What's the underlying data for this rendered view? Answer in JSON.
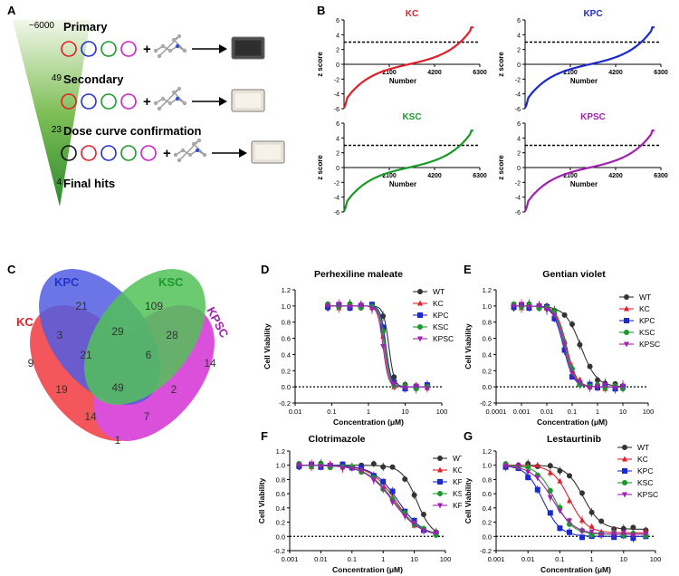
{
  "panels": {
    "a": "A",
    "b": "B",
    "c": "C",
    "d": "D",
    "e": "E",
    "f": "F",
    "g": "G"
  },
  "screen": {
    "stages": [
      {
        "count": "~6000",
        "label": "Primary",
        "circle_colors": [
          "#e0202a",
          "#2233cc",
          "#1a9a2a",
          "#cc22cc"
        ],
        "plate": "dark"
      },
      {
        "count": "49",
        "label": "Secondary",
        "circle_colors": [
          "#e0202a",
          "#2233cc",
          "#1a9a2a",
          "#cc22cc"
        ],
        "plate": "light"
      },
      {
        "count": "23",
        "label": "Dose curve confirmation",
        "circle_colors": [
          "#111111",
          "#e0202a",
          "#2233cc",
          "#1a9a2a",
          "#cc22cc"
        ],
        "plate": "light"
      },
      {
        "count": "4",
        "label": "Final hits"
      }
    ],
    "plus": "+"
  },
  "zscore": {
    "ylabel": "z score",
    "xlabel": "Number",
    "yticks": [
      "6",
      "4",
      "2",
      "0",
      "-2",
      "-4",
      "-6"
    ],
    "xticks": [
      "2100",
      "4200",
      "6300"
    ],
    "threshold": 3,
    "panels": [
      {
        "title": "KC",
        "color": "#e0202a"
      },
      {
        "title": "KPC",
        "color": "#1a2acc"
      },
      {
        "title": "KSC",
        "color": "#1a9a2a"
      },
      {
        "title": "KPSC",
        "color": "#a020b0"
      }
    ]
  },
  "venn": {
    "sets": [
      {
        "name": "KC",
        "color": "#e0202a"
      },
      {
        "name": "KPC",
        "color": "#2233cc"
      },
      {
        "name": "KSC",
        "color": "#1a9a2a"
      },
      {
        "name": "KPSC",
        "color": "#a020b0"
      }
    ],
    "counts": {
      "kc_only": "9",
      "kpc_only": "21",
      "ksc_only": "109",
      "kpsc_only": "14",
      "kc_kpc": "3",
      "kpc_ksc": "29",
      "ksc_kpsc": "28",
      "kc_kpc_ksc": "21",
      "kpc_ksc_kpsc": "6",
      "all": "49",
      "kc_ksc": "19",
      "kpc_kpsc": "2",
      "kc_ksc_kpsc": "14",
      "kc_kpc_kpsc": "7",
      "kc_kpsc": "1"
    }
  },
  "chart_data": [
    {
      "type": "line",
      "title": "Perhexiline maleate",
      "xlabel": "Concentration (μM)",
      "ylabel": "Cell Viability",
      "xscale": "log",
      "xlim": [
        0.01,
        100
      ],
      "ylim": [
        -0.2,
        1.2
      ],
      "xticks": [
        "0.01",
        "0.1",
        "1",
        "10",
        "100"
      ],
      "yticks": [
        "1.2",
        "1.0",
        "0.8",
        "0.6",
        "0.4",
        "0.2",
        "0.0",
        "-0.2"
      ],
      "x": [
        0.078,
        0.156,
        0.3125,
        0.625,
        1.25,
        2.5,
        5,
        10,
        20,
        40
      ],
      "series": [
        {
          "name": "WT",
          "color": "#333333",
          "marker": "circle",
          "ec50": 3.6,
          "hill": 6
        },
        {
          "name": "KC",
          "color": "#e0202a",
          "marker": "triangle",
          "ec50": 2.7,
          "hill": 6
        },
        {
          "name": "KPC",
          "color": "#1a2acc",
          "marker": "square",
          "ec50": 3.0,
          "hill": 6
        },
        {
          "name": "KSC",
          "color": "#1a9a2a",
          "marker": "circle",
          "ec50": 2.8,
          "hill": 6
        },
        {
          "name": "KPSC",
          "color": "#a020b0",
          "marker": "triangle-down",
          "ec50": 2.5,
          "hill": 6
        }
      ]
    },
    {
      "type": "line",
      "title": "Gentian violet",
      "xlabel": "Concentration (μM)",
      "ylabel": "Cell Viability",
      "xscale": "log",
      "xlim": [
        0.0001,
        100
      ],
      "ylim": [
        -0.2,
        1.2
      ],
      "xticks": [
        "0.0001",
        "0.001",
        "0.01",
        "0.1",
        "1",
        "10",
        "100"
      ],
      "yticks": [
        "1.2",
        "1.0",
        "0.8",
        "0.6",
        "0.4",
        "0.2",
        "0.0",
        "-0.2"
      ],
      "x": [
        0.0005,
        0.001,
        0.002,
        0.005,
        0.01,
        0.02,
        0.05,
        0.1,
        0.2,
        0.5,
        1,
        2,
        5,
        10
      ],
      "series": [
        {
          "name": "WT",
          "color": "#333333",
          "marker": "circle",
          "ec50": 0.22,
          "hill": 1.4
        },
        {
          "name": "KC",
          "color": "#e0202a",
          "marker": "triangle",
          "ec50": 0.06,
          "hill": 2.2
        },
        {
          "name": "KPC",
          "color": "#1a2acc",
          "marker": "square",
          "ec50": 0.045,
          "hill": 2.2
        },
        {
          "name": "KSC",
          "color": "#1a9a2a",
          "marker": "circle",
          "ec50": 0.055,
          "hill": 2.2
        },
        {
          "name": "KPSC",
          "color": "#a020b0",
          "marker": "triangle-down",
          "ec50": 0.05,
          "hill": 2.2
        }
      ]
    },
    {
      "type": "line",
      "title": "Clotrimazole",
      "xlabel": "Concentration (μM)",
      "ylabel": "Cell Viability",
      "xscale": "log",
      "xlim": [
        0.001,
        100
      ],
      "ylim": [
        -0.2,
        1.2
      ],
      "xticks": [
        "0.001",
        "0.01",
        "0.1",
        "1",
        "10",
        "100"
      ],
      "yticks": [
        "1.2",
        "1.0",
        "0.8",
        "0.6",
        "0.4",
        "0.2",
        "0.0",
        "-0.2"
      ],
      "x": [
        0.002,
        0.005,
        0.01,
        0.02,
        0.05,
        0.1,
        0.2,
        0.5,
        1,
        2,
        5,
        10,
        20,
        50
      ],
      "series": [
        {
          "name": "WT",
          "color": "#333333",
          "marker": "circle",
          "ec50": 12,
          "hill": 1.8
        },
        {
          "name": "KC",
          "color": "#e0202a",
          "marker": "triangle",
          "ec50": 2.5,
          "hill": 1.1
        },
        {
          "name": "KPC",
          "color": "#1a2acc",
          "marker": "square",
          "ec50": 3.0,
          "hill": 1.1
        },
        {
          "name": "KSC",
          "color": "#1a9a2a",
          "marker": "circle",
          "ec50": 2.2,
          "hill": 1.0
        },
        {
          "name": "KPSC",
          "color": "#a020b0",
          "marker": "triangle-down",
          "ec50": 2.0,
          "hill": 1.0
        }
      ]
    },
    {
      "type": "line",
      "title": "Lestaurtinib",
      "xlabel": "Concentration (μM)",
      "ylabel": "Cell Viability",
      "xscale": "log",
      "xlim": [
        0.001,
        100
      ],
      "ylim": [
        -0.2,
        1.2
      ],
      "xticks": [
        "0.001",
        "0.01",
        "0.1",
        "1",
        "10",
        "100"
      ],
      "yticks": [
        "1.2",
        "1.0",
        "0.8",
        "0.6",
        "0.4",
        "0.2",
        "0.0",
        "-0.2"
      ],
      "x": [
        0.002,
        0.005,
        0.01,
        0.02,
        0.05,
        0.1,
        0.2,
        0.5,
        1,
        2,
        5,
        10,
        20,
        50
      ],
      "series": [
        {
          "name": "WT",
          "color": "#333333",
          "marker": "circle",
          "ec50": 0.55,
          "hill": 1.6,
          "bottom": 0.1
        },
        {
          "name": "KC",
          "color": "#e0202a",
          "marker": "triangle",
          "ec50": 0.2,
          "hill": 1.6,
          "bottom": 0.05
        },
        {
          "name": "KPC",
          "color": "#1a2acc",
          "marker": "square",
          "ec50": 0.03,
          "hill": 1.6,
          "bottom": 0.0
        },
        {
          "name": "KSC",
          "color": "#1a9a2a",
          "marker": "circle",
          "ec50": 0.07,
          "hill": 1.6,
          "bottom": 0.03
        },
        {
          "name": "KPSC",
          "color": "#a020b0",
          "marker": "triangle-down",
          "ec50": 0.06,
          "hill": 1.3,
          "bottom": 0.03
        }
      ]
    }
  ]
}
